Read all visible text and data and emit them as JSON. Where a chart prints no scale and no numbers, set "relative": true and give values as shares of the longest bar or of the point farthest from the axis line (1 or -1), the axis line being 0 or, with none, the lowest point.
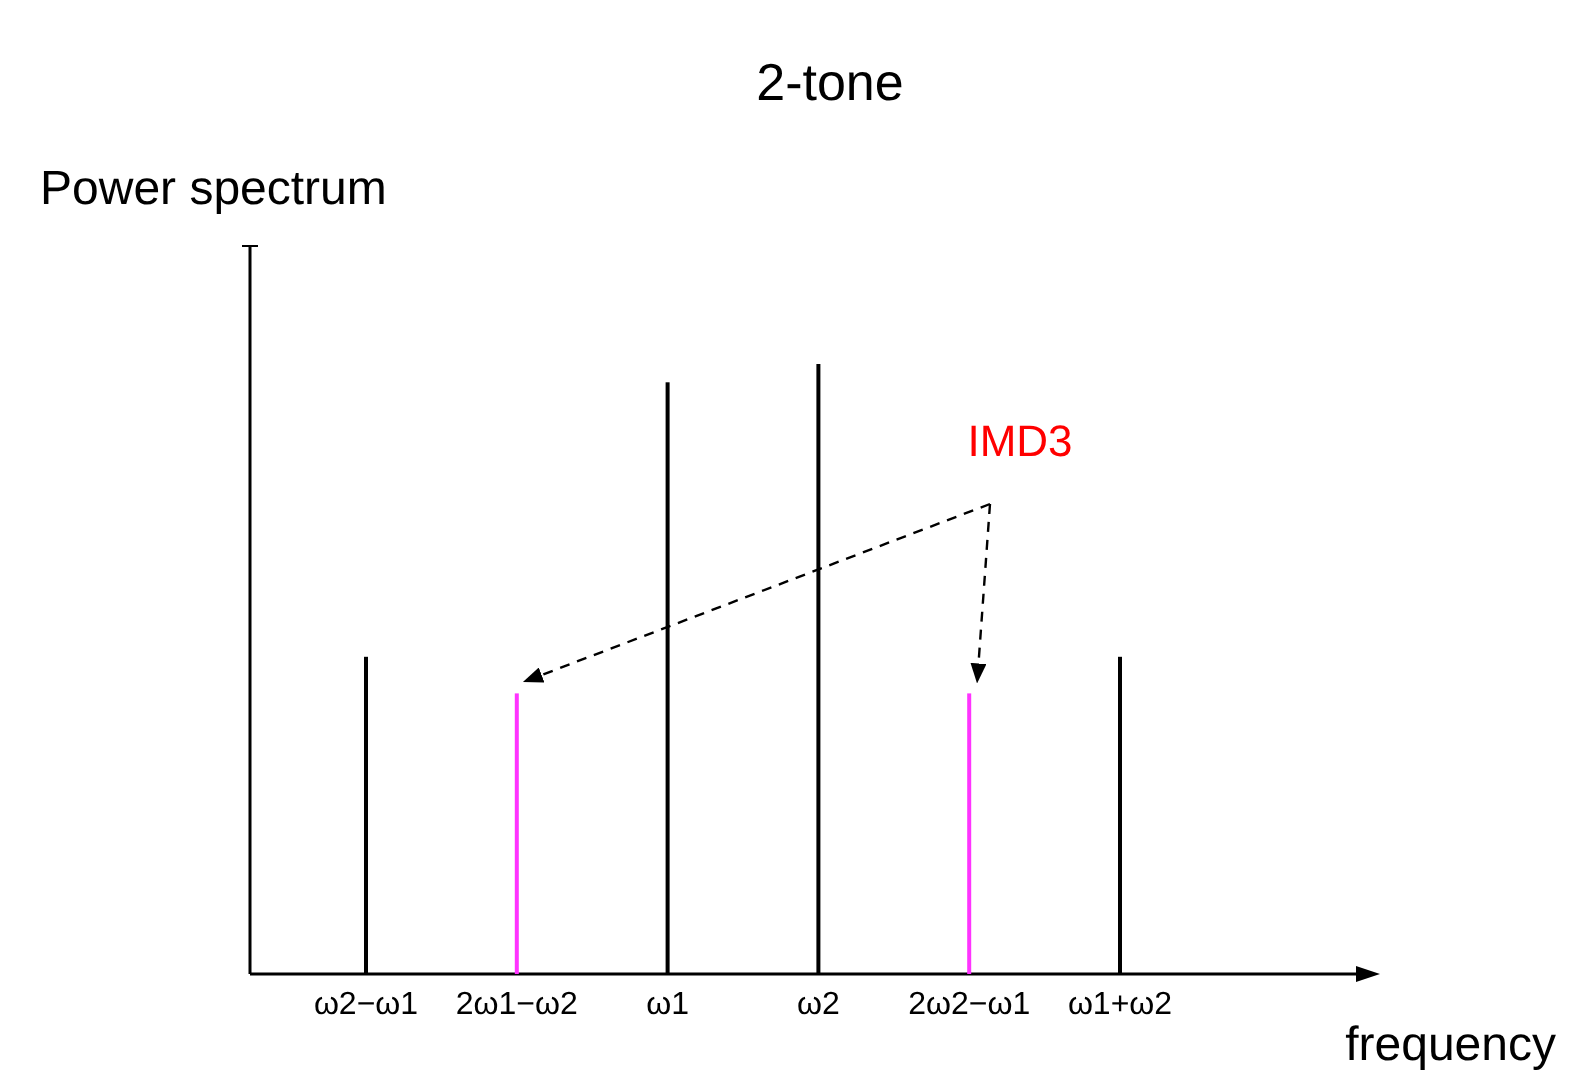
{
  "chart_data": {
    "type": "bar",
    "title": "2-tone",
    "xlabel": "frequency",
    "ylabel": "Power spectrum",
    "relative": true,
    "categories": [
      "ω2−ω1",
      "2ω1−ω2",
      "ω1",
      "ω2",
      "2ω2−ω1",
      "ω1+ω2"
    ],
    "values": [
      0.52,
      0.46,
      0.97,
      1,
      0.46,
      0.52
    ],
    "colors": [
      "#000000",
      "#ff33ff",
      "#000000",
      "#000000",
      "#ff33ff",
      "#000000"
    ],
    "annotations": [
      "IMD3"
    ]
  }
}
